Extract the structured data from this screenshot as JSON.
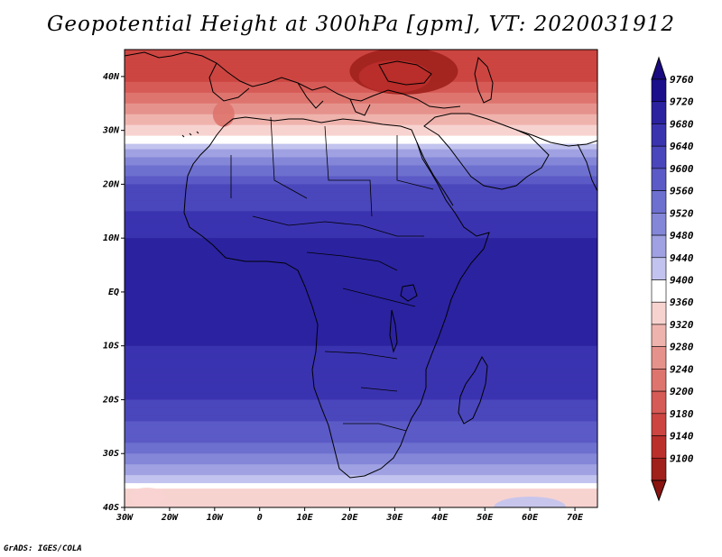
{
  "title": "Geopotential Height at 300hPa [gpm], VT: 2020031912",
  "credit": "GrADS: IGES/COLA",
  "map": {
    "projection": "latlon",
    "lon_range": [
      -30,
      75
    ],
    "lat_range": [
      -40,
      45
    ],
    "lat_ticks": [
      {
        "value": 40,
        "label": "40N"
      },
      {
        "value": 30,
        "label": "30N"
      },
      {
        "value": 20,
        "label": "20N"
      },
      {
        "value": 10,
        "label": "10N"
      },
      {
        "value": 0,
        "label": "EQ"
      },
      {
        "value": -10,
        "label": "10S"
      },
      {
        "value": -20,
        "label": "20S"
      },
      {
        "value": -30,
        "label": "30S"
      },
      {
        "value": -40,
        "label": "40S"
      }
    ],
    "lon_ticks": [
      {
        "value": -30,
        "label": "30W"
      },
      {
        "value": -20,
        "label": "20W"
      },
      {
        "value": -10,
        "label": "10W"
      },
      {
        "value": 0,
        "label": "0"
      },
      {
        "value": 10,
        "label": "10E"
      },
      {
        "value": 20,
        "label": "20E"
      },
      {
        "value": 30,
        "label": "30E"
      },
      {
        "value": 40,
        "label": "40E"
      },
      {
        "value": 50,
        "label": "50E"
      },
      {
        "value": 60,
        "label": "60E"
      },
      {
        "value": 70,
        "label": "70E"
      }
    ]
  },
  "colorbar": {
    "levels": [
      {
        "label": "9760",
        "color": "#1b0f8c"
      },
      {
        "label": "9720",
        "color": "#2b22a0"
      },
      {
        "label": "9680",
        "color": "#3a33b0"
      },
      {
        "label": "9640",
        "color": "#4a46bb"
      },
      {
        "label": "9600",
        "color": "#5b5ac6"
      },
      {
        "label": "9560",
        "color": "#6e70cf"
      },
      {
        "label": "9520",
        "color": "#8486d8"
      },
      {
        "label": "9480",
        "color": "#9fa1e2"
      },
      {
        "label": "9440",
        "color": "#c2c3ee"
      },
      {
        "label": "9400",
        "color": "#ffffff"
      },
      {
        "label": "9360",
        "color": "#f7d3d0"
      },
      {
        "label": "9320",
        "color": "#efb3ad"
      },
      {
        "label": "9280",
        "color": "#e6928c"
      },
      {
        "label": "9240",
        "color": "#de746e"
      },
      {
        "label": "9200",
        "color": "#d65a56"
      },
      {
        "label": "9180",
        "color": "#cc4541"
      },
      {
        "label": "9140",
        "color": "#bb2f2b"
      },
      {
        "label": "9100",
        "color": "#a0201c"
      }
    ],
    "top_color": "#1a0a80",
    "bottom_color": "#8a1410"
  },
  "field": {
    "description_values": [
      {
        "lat": 40,
        "value": 9180
      },
      {
        "lat": 33,
        "value": 9320
      },
      {
        "lat": 29,
        "value": 9400
      },
      {
        "lat": 25,
        "value": 9520
      },
      {
        "lat": 20,
        "value": 9640
      },
      {
        "lat": 10,
        "value": 9720
      },
      {
        "lat": 0,
        "value": 9720
      },
      {
        "lat": -10,
        "value": 9720
      },
      {
        "lat": -20,
        "value": 9680
      },
      {
        "lat": -28,
        "value": 9600
      },
      {
        "lat": -34,
        "value": 9480
      },
      {
        "lat": -38,
        "value": 9360
      }
    ]
  }
}
